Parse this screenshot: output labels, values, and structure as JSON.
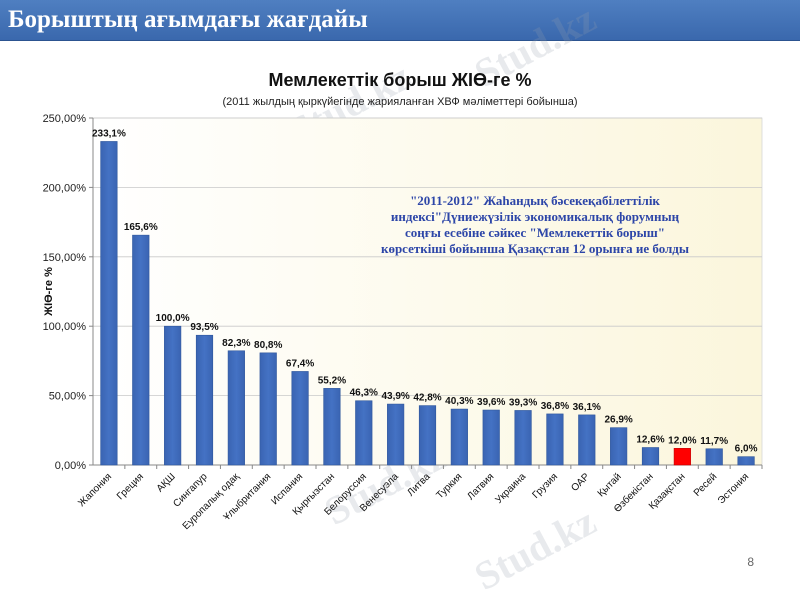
{
  "header": {
    "title": "Борыштың ағымдағы жағдайы"
  },
  "watermark": "Stud.kz",
  "page_number": "8",
  "chart_data": {
    "type": "bar",
    "title": "Мемлекеттік борыш ЖІӨ-ге %",
    "subtitle": "(2011 жылдың қыркүйегінде жарияланған ХВФ мәліметтері бойынша)",
    "ylabel": "ЖІӨ-ге %",
    "xlabel": "",
    "ylim": [
      0,
      250
    ],
    "yticks": [
      "0,00%",
      "50,00%",
      "100,00%",
      "150,00%",
      "200,00%",
      "250,00%"
    ],
    "grid": true,
    "categories": [
      "Жапония",
      "Греция",
      "АҚШ",
      "Сингапур",
      "Еуропалық одақ",
      "Ұлыбритания",
      "Испания",
      "Қырғызстан",
      "Белоруссия",
      "Венесуэла",
      "Литва",
      "Туркия",
      "Латвия",
      "Украина",
      "Грузия",
      "ОАР",
      "Қытай",
      "Өзбекістан",
      "Қазақстан",
      "Ресей",
      "Эстония"
    ],
    "values": [
      233.1,
      165.6,
      100.0,
      93.5,
      82.3,
      80.8,
      67.4,
      55.2,
      46.3,
      43.9,
      42.8,
      40.3,
      39.6,
      39.3,
      36.8,
      36.1,
      26.9,
      12.6,
      12.0,
      11.7,
      6.0
    ],
    "value_labels": [
      "233,1%",
      "165,6%",
      "100,0%",
      "93,5%",
      "82,3%",
      "80,8%",
      "67,4%",
      "55,2%",
      "46,3%",
      "43,9%",
      "42,8%",
      "40,3%",
      "39,6%",
      "39,3%",
      "36,8%",
      "36,1%",
      "26,9%",
      "12,6%",
      "12,0%",
      "11,7%",
      "6,0%"
    ],
    "highlight_index": 18,
    "colors": {
      "bar": "#4472c4",
      "highlight": "#ff0000",
      "plot_bg": "#fbf6dc"
    },
    "annotation": "\"2011-2012\" Жаһандық бәсекеқабілеттілік индексі\"Дүниежүзілік экономикалық форумның соңғы есебіне сәйкес \"Мемлекеттік борыш\" көрсеткіші бойынша Қазақстан 12 орынға ие болды"
  }
}
